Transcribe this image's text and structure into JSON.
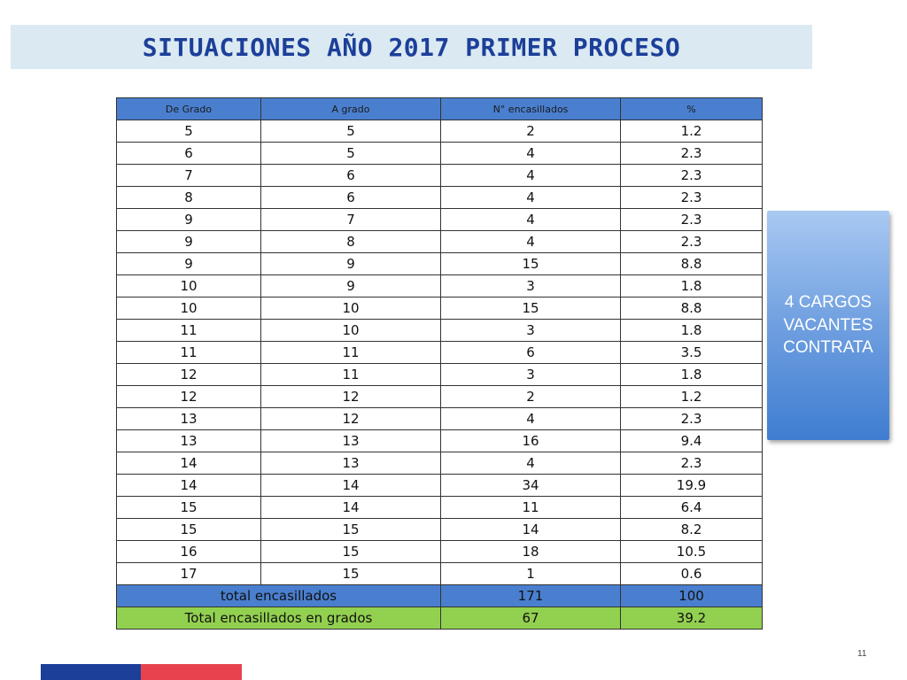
{
  "title": "SITUACIONES AÑO 2017 PRIMER PROCESO",
  "table": {
    "headers": [
      "De Grado",
      "A grado",
      "N° encasillados",
      "%"
    ],
    "rows": [
      [
        "5",
        "5",
        "2",
        "1.2"
      ],
      [
        "6",
        "5",
        "4",
        "2.3"
      ],
      [
        "7",
        "6",
        "4",
        "2.3"
      ],
      [
        "8",
        "6",
        "4",
        "2.3"
      ],
      [
        "9",
        "7",
        "4",
        "2.3"
      ],
      [
        "9",
        "8",
        "4",
        "2.3"
      ],
      [
        "9",
        "9",
        "15",
        "8.8"
      ],
      [
        "10",
        "9",
        "3",
        "1.8"
      ],
      [
        "10",
        "10",
        "15",
        "8.8"
      ],
      [
        "11",
        "10",
        "3",
        "1.8"
      ],
      [
        "11",
        "11",
        "6",
        "3.5"
      ],
      [
        "12",
        "11",
        "3",
        "1.8"
      ],
      [
        "12",
        "12",
        "2",
        "1.2"
      ],
      [
        "13",
        "12",
        "4",
        "2.3"
      ],
      [
        "13",
        "13",
        "16",
        "9.4"
      ],
      [
        "14",
        "13",
        "4",
        "2.3"
      ],
      [
        "14",
        "14",
        "34",
        "19.9"
      ],
      [
        "15",
        "14",
        "11",
        "6.4"
      ],
      [
        "15",
        "15",
        "14",
        "8.2"
      ],
      [
        "16",
        "15",
        "18",
        "10.5"
      ],
      [
        "17",
        "15",
        "1",
        "0.6"
      ]
    ],
    "total": {
      "label": "total encasillados",
      "count": "171",
      "percent": "100"
    },
    "total_grades": {
      "label": "Total encasillados en grados",
      "count": "67",
      "percent": "39.2"
    }
  },
  "callout": {
    "text": "4 CARGOS\nVACANTES\nCONTRATA"
  },
  "page_number": "11",
  "colors": {
    "title_text": "#1c3f99",
    "title_bg": "#dbe9f2",
    "header_bg": "#4a7fcf",
    "total_bg": "#4a7fcf",
    "grades_total_bg": "#92d050",
    "footer_blue": "#1c3f99",
    "footer_red": "#e8434d"
  }
}
